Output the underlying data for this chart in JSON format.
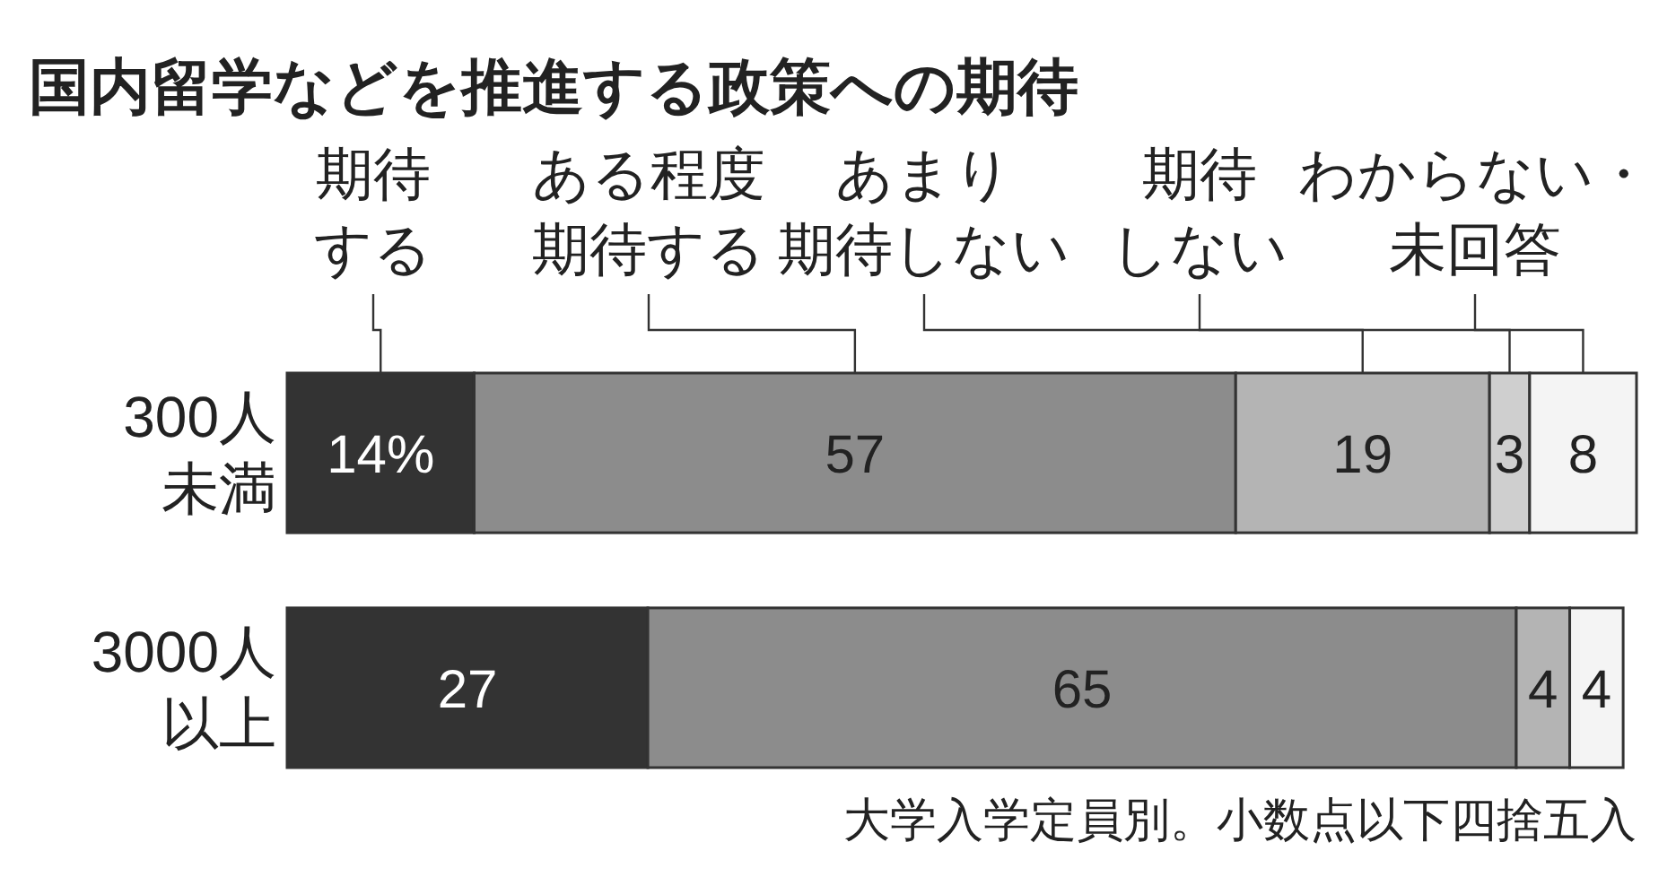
{
  "chart_data": {
    "type": "bar",
    "orientation": "horizontal",
    "stacked": true,
    "title": "国内留学などを推進する政策への期待",
    "categories": [
      "300人未満",
      "3000人以上"
    ],
    "series": [
      {
        "name": "期待する",
        "color": "#333333",
        "values": [
          14,
          27
        ],
        "value_labels": [
          "14%",
          "27"
        ]
      },
      {
        "name": "ある程度期待する",
        "color": "#8c8c8c",
        "values": [
          57,
          65
        ],
        "value_labels": [
          "57",
          "65"
        ]
      },
      {
        "name": "あまり期待しない",
        "color": "#b4b4b4",
        "values": [
          19,
          4
        ],
        "value_labels": [
          "19",
          "4"
        ]
      },
      {
        "name": "期待しない",
        "color": "#cfcfcf",
        "values": [
          3,
          null
        ],
        "value_labels": [
          "3",
          null
        ]
      },
      {
        "name": "わからない・未回答",
        "color": "#f4f4f4",
        "values": [
          8,
          4
        ],
        "value_labels": [
          "8",
          "4"
        ]
      }
    ],
    "legend": "top",
    "annotations": [
      "大学入学定員別。小数点以下四捨五入"
    ]
  }
}
